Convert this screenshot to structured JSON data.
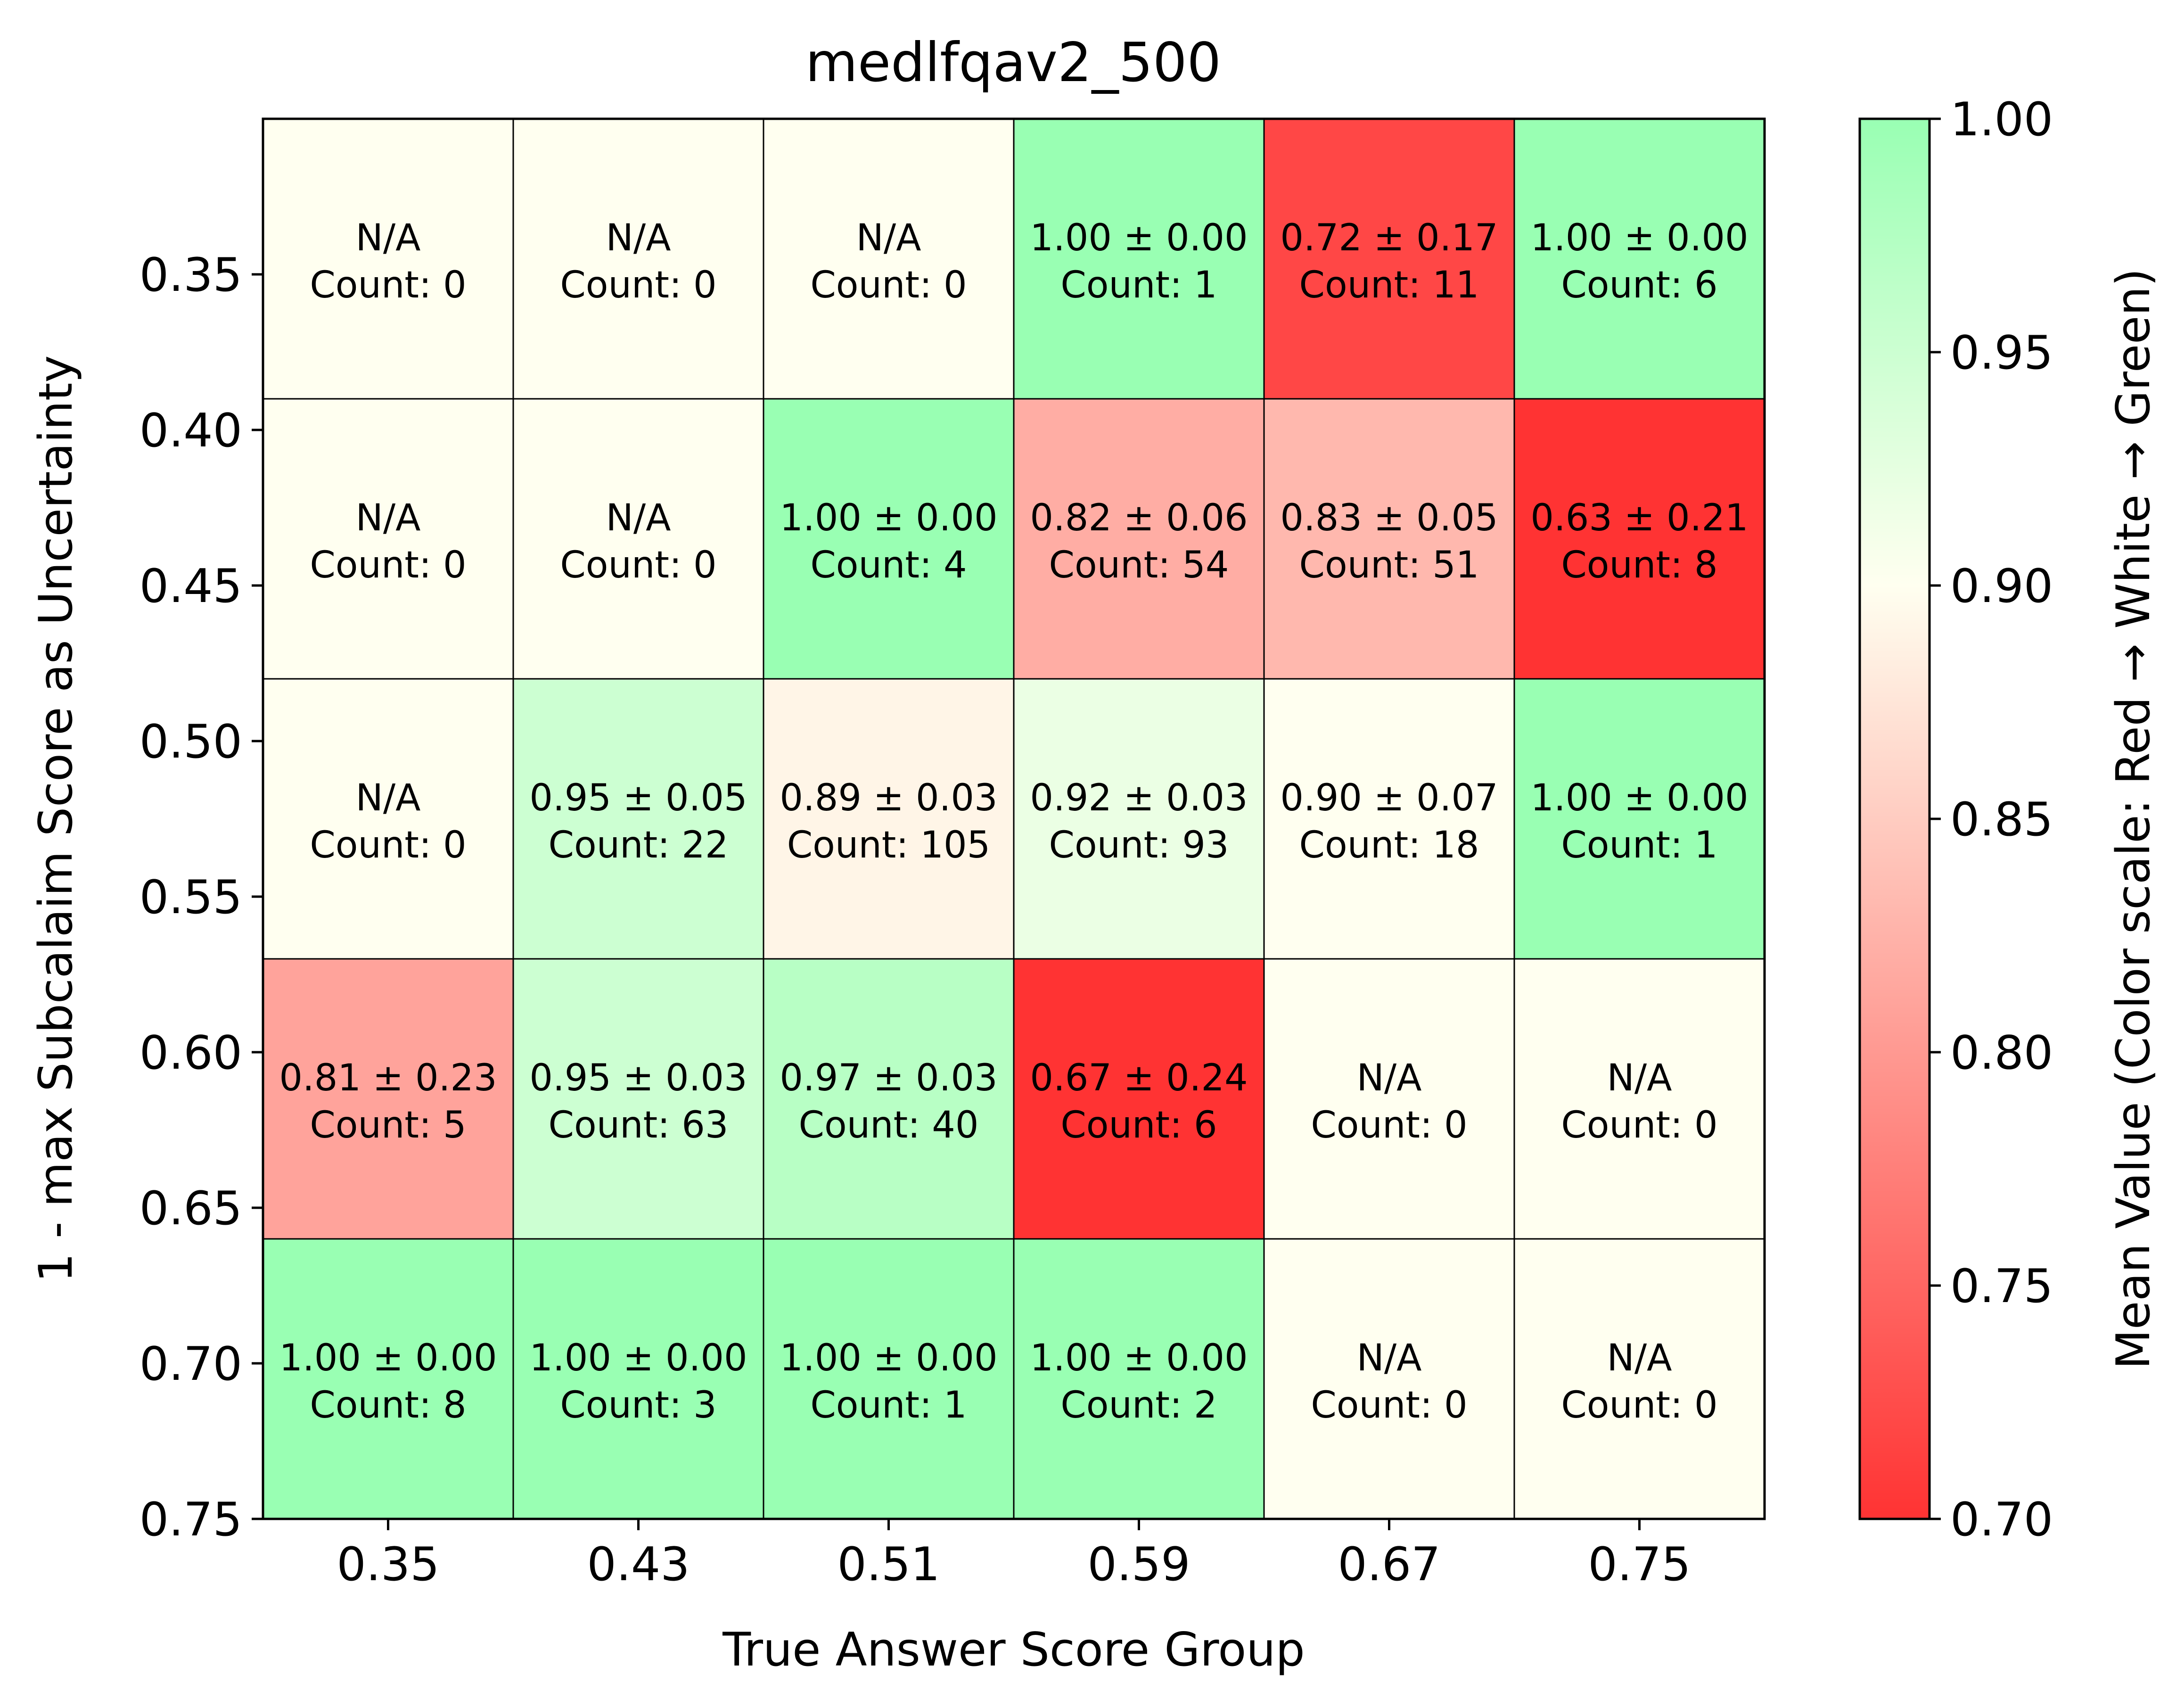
{
  "chart_data": {
    "type": "heatmap",
    "title": "medlfqav2_500",
    "xlabel": "True Answer Score Group",
    "ylabel": "1 - max Subcalaim Score as Uncertainty",
    "x_categories": [
      "0.35",
      "0.43",
      "0.51",
      "0.59",
      "0.67",
      "0.75"
    ],
    "y_ticks": [
      "0.35",
      "0.40",
      "0.45",
      "0.50",
      "0.55",
      "0.60",
      "0.65",
      "0.70",
      "0.75"
    ],
    "y_range": [
      0.75,
      0.3
    ],
    "cells": [
      [
        {
          "label": "N/A",
          "count": "Count: 0",
          "value": null
        },
        {
          "label": "N/A",
          "count": "Count: 0",
          "value": null
        },
        {
          "label": "N/A",
          "count": "Count: 0",
          "value": null
        },
        {
          "label": "1.00 ± 0.00",
          "count": "Count: 1",
          "value": 1.0
        },
        {
          "label": "0.72 ± 0.17",
          "count": "Count: 11",
          "value": 0.72
        },
        {
          "label": "1.00 ± 0.00",
          "count": "Count: 6",
          "value": 1.0
        }
      ],
      [
        {
          "label": "N/A",
          "count": "Count: 0",
          "value": null
        },
        {
          "label": "N/A",
          "count": "Count: 0",
          "value": null
        },
        {
          "label": "1.00 ± 0.00",
          "count": "Count: 4",
          "value": 1.0
        },
        {
          "label": "0.82 ± 0.06",
          "count": "Count: 54",
          "value": 0.82
        },
        {
          "label": "0.83 ± 0.05",
          "count": "Count: 51",
          "value": 0.83
        },
        {
          "label": "0.63 ± 0.21",
          "count": "Count: 8",
          "value": 0.63
        }
      ],
      [
        {
          "label": "N/A",
          "count": "Count: 0",
          "value": null
        },
        {
          "label": "0.95 ± 0.05",
          "count": "Count: 22",
          "value": 0.95
        },
        {
          "label": "0.89 ± 0.03",
          "count": "Count: 105",
          "value": 0.89
        },
        {
          "label": "0.92 ± 0.03",
          "count": "Count: 93",
          "value": 0.92
        },
        {
          "label": "0.90 ± 0.07",
          "count": "Count: 18",
          "value": 0.9
        },
        {
          "label": "1.00 ± 0.00",
          "count": "Count: 1",
          "value": 1.0
        }
      ],
      [
        {
          "label": "0.81 ± 0.23",
          "count": "Count: 5",
          "value": 0.81
        },
        {
          "label": "0.95 ± 0.03",
          "count": "Count: 63",
          "value": 0.95
        },
        {
          "label": "0.97 ± 0.03",
          "count": "Count: 40",
          "value": 0.97
        },
        {
          "label": "0.67 ± 0.24",
          "count": "Count: 6",
          "value": 0.67
        },
        {
          "label": "N/A",
          "count": "Count: 0",
          "value": null
        },
        {
          "label": "N/A",
          "count": "Count: 0",
          "value": null
        }
      ],
      [
        {
          "label": "1.00 ± 0.00",
          "count": "Count: 8",
          "value": 1.0
        },
        {
          "label": "1.00 ± 0.00",
          "count": "Count: 3",
          "value": 1.0
        },
        {
          "label": "1.00 ± 0.00",
          "count": "Count: 1",
          "value": 1.0
        },
        {
          "label": "1.00 ± 0.00",
          "count": "Count: 2",
          "value": 1.0
        },
        {
          "label": "N/A",
          "count": "Count: 0",
          "value": null
        },
        {
          "label": "N/A",
          "count": "Count: 0",
          "value": null
        }
      ]
    ],
    "colorbar": {
      "label": "Mean Value (Color scale: Red → White → Green)",
      "range": [
        0.7,
        1.0
      ],
      "ticks": [
        "0.70",
        "0.75",
        "0.80",
        "0.85",
        "0.90",
        "0.95",
        "1.00"
      ],
      "colors": {
        "low": "#ff3333",
        "mid": "#fffff0",
        "high": "#99ffb3"
      },
      "na_color": "#fffff0"
    }
  }
}
